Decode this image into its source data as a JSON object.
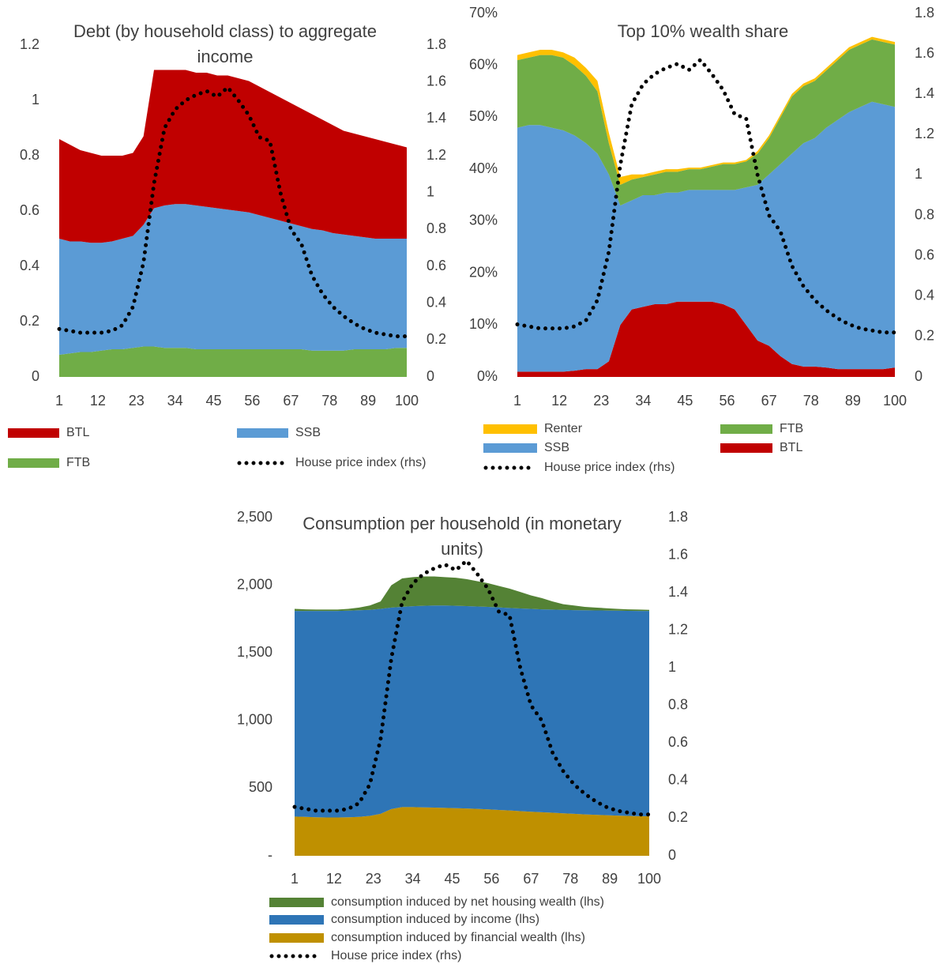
{
  "chart_data": [
    {
      "type": "area",
      "title": "Debt (by household class) to aggregate income",
      "x": [
        1,
        4,
        7,
        10,
        13,
        16,
        19,
        22,
        25,
        28,
        31,
        34,
        37,
        40,
        43,
        46,
        49,
        52,
        55,
        58,
        61,
        64,
        67,
        70,
        73,
        76,
        79,
        82,
        85,
        88,
        91,
        94,
        97,
        100
      ],
      "xlim": [
        1,
        100
      ],
      "xticks": [
        1,
        12,
        23,
        34,
        45,
        56,
        67,
        78,
        89,
        100
      ],
      "ylim": [
        0,
        1.2
      ],
      "yticks": [
        0,
        0.2,
        0.4,
        0.6,
        0.8,
        1,
        1.2
      ],
      "y2lim": [
        0,
        1.8
      ],
      "y2ticks": [
        0,
        0.2,
        0.4,
        0.6,
        0.8,
        1,
        1.2,
        1.4,
        1.6,
        1.8
      ],
      "series": [
        {
          "name": "FTB",
          "color": "#70ad47",
          "values": [
            0.08,
            0.085,
            0.09,
            0.09,
            0.095,
            0.1,
            0.1,
            0.105,
            0.11,
            0.11,
            0.105,
            0.105,
            0.105,
            0.1,
            0.1,
            0.1,
            0.1,
            0.1,
            0.1,
            0.1,
            0.1,
            0.1,
            0.1,
            0.1,
            0.095,
            0.095,
            0.095,
            0.095,
            0.1,
            0.1,
            0.1,
            0.1,
            0.105,
            0.105
          ]
        },
        {
          "name": "SSB",
          "color": "#5b9bd5",
          "values": [
            0.42,
            0.405,
            0.4,
            0.395,
            0.39,
            0.39,
            0.4,
            0.405,
            0.44,
            0.5,
            0.515,
            0.52,
            0.52,
            0.52,
            0.515,
            0.51,
            0.505,
            0.5,
            0.495,
            0.485,
            0.475,
            0.465,
            0.455,
            0.445,
            0.44,
            0.435,
            0.425,
            0.42,
            0.41,
            0.405,
            0.4,
            0.4,
            0.395,
            0.395
          ]
        },
        {
          "name": "BTL",
          "color": "#c00000",
          "values": [
            0.36,
            0.35,
            0.33,
            0.325,
            0.315,
            0.31,
            0.3,
            0.3,
            0.32,
            0.5,
            0.49,
            0.485,
            0.485,
            0.48,
            0.485,
            0.48,
            0.485,
            0.48,
            0.475,
            0.465,
            0.455,
            0.445,
            0.435,
            0.425,
            0.415,
            0.4,
            0.39,
            0.375,
            0.37,
            0.365,
            0.36,
            0.35,
            0.34,
            0.33
          ]
        },
        {
          "name": "House price index (rhs)",
          "type": "line",
          "axis": "y2",
          "color": "#000000",
          "values": [
            0.26,
            0.25,
            0.24,
            0.24,
            0.24,
            0.25,
            0.28,
            0.38,
            0.62,
            1.05,
            1.35,
            1.45,
            1.5,
            1.53,
            1.55,
            1.52,
            1.57,
            1.5,
            1.42,
            1.3,
            1.28,
            1.0,
            0.8,
            0.72,
            0.55,
            0.45,
            0.38,
            0.33,
            0.29,
            0.26,
            0.24,
            0.23,
            0.22,
            0.22
          ]
        }
      ]
    },
    {
      "type": "area",
      "title": "Top 10% wealth share",
      "x": [
        1,
        4,
        7,
        10,
        13,
        16,
        19,
        22,
        25,
        28,
        31,
        34,
        37,
        40,
        43,
        46,
        49,
        52,
        55,
        58,
        61,
        64,
        67,
        70,
        73,
        76,
        79,
        82,
        85,
        88,
        91,
        94,
        97,
        100
      ],
      "xlim": [
        1,
        100
      ],
      "xticks": [
        1,
        12,
        23,
        34,
        45,
        56,
        67,
        78,
        89,
        100
      ],
      "ylim": [
        0,
        70
      ],
      "yticks": [
        {
          "value": 0,
          "label": "0%"
        },
        {
          "value": 10,
          "label": "10%"
        },
        {
          "value": 20,
          "label": "20%"
        },
        {
          "value": 30,
          "label": "30%"
        },
        {
          "value": 40,
          "label": "40%"
        },
        {
          "value": 50,
          "label": "50%"
        },
        {
          "value": 60,
          "label": "60%"
        },
        {
          "value": 70,
          "label": "70%"
        }
      ],
      "y2lim": [
        0,
        1.8
      ],
      "y2ticks": [
        0,
        0.2,
        0.4,
        0.6,
        0.8,
        1,
        1.2,
        1.4,
        1.6,
        1.8
      ],
      "series": [
        {
          "name": "BTL",
          "color": "#c00000",
          "values": [
            1,
            1,
            1,
            1,
            1,
            1.2,
            1.5,
            1.5,
            3,
            10,
            13,
            13.5,
            14,
            14,
            14.5,
            14.5,
            14.5,
            14.5,
            14,
            13,
            10,
            7,
            6,
            4,
            2.5,
            2,
            2,
            1.8,
            1.5,
            1.5,
            1.5,
            1.5,
            1.5,
            1.8
          ]
        },
        {
          "name": "SSB",
          "color": "#5b9bd5",
          "values": [
            47,
            47.5,
            47.5,
            47,
            46.5,
            45.3,
            43.5,
            41.5,
            36,
            23,
            21,
            21.5,
            21,
            21.5,
            21,
            21.5,
            21.5,
            21.5,
            22,
            23,
            26.5,
            30,
            33,
            37,
            40.5,
            43,
            44,
            46.2,
            48,
            49.5,
            50.5,
            51.5,
            51,
            50.2
          ]
        },
        {
          "name": "FTB",
          "color": "#70ad47",
          "values": [
            13,
            13,
            13.5,
            14,
            14,
            13.5,
            13,
            12,
            6,
            4,
            4,
            3.5,
            4,
            4,
            4,
            4,
            4,
            4.5,
            5,
            5,
            5,
            6,
            7,
            9,
            11,
            11,
            11,
            11,
            11.5,
            12,
            12,
            12,
            12,
            12
          ]
        },
        {
          "name": "Renter",
          "color": "#ffc000",
          "values": [
            1,
            1,
            1,
            1,
            1,
            1.5,
            1.5,
            2,
            2,
            1.5,
            1,
            0.5,
            0.5,
            0.5,
            0.5,
            0.3,
            0.3,
            0.3,
            0.3,
            0.3,
            0.3,
            0.5,
            0.5,
            0.5,
            0.5,
            0.5,
            0.5,
            0.5,
            0.5,
            0.5,
            0.5,
            0.5,
            0.5,
            0.5
          ]
        },
        {
          "name": "House price index (rhs)",
          "type": "line",
          "axis": "y2",
          "color": "#000000",
          "values": [
            0.26,
            0.25,
            0.24,
            0.24,
            0.24,
            0.25,
            0.28,
            0.38,
            0.62,
            1.05,
            1.35,
            1.45,
            1.5,
            1.53,
            1.55,
            1.52,
            1.57,
            1.5,
            1.42,
            1.3,
            1.28,
            1.0,
            0.8,
            0.72,
            0.55,
            0.45,
            0.38,
            0.33,
            0.29,
            0.26,
            0.24,
            0.23,
            0.22,
            0.22
          ]
        }
      ]
    },
    {
      "type": "area",
      "title": "Consumption per household (in monetary units)",
      "x": [
        1,
        4,
        7,
        10,
        13,
        16,
        19,
        22,
        25,
        28,
        31,
        34,
        37,
        40,
        43,
        46,
        49,
        52,
        55,
        58,
        61,
        64,
        67,
        70,
        73,
        76,
        79,
        82,
        85,
        88,
        91,
        94,
        97,
        100
      ],
      "xlim": [
        1,
        100
      ],
      "xticks": [
        1,
        12,
        23,
        34,
        45,
        56,
        67,
        78,
        89,
        100
      ],
      "ylim": [
        0,
        2500
      ],
      "yticks": [
        {
          "value": 0,
          "label": "-"
        },
        500,
        {
          "value": 1000,
          "label": "1,000"
        },
        {
          "value": 1500,
          "label": "1,500"
        },
        {
          "value": 2000,
          "label": "2,000"
        },
        {
          "value": 2500,
          "label": "2,500"
        }
      ],
      "y2lim": [
        0,
        1.8
      ],
      "y2ticks": [
        0,
        0.2,
        0.4,
        0.6,
        0.8,
        1,
        1.2,
        1.4,
        1.6,
        1.8
      ],
      "series": [
        {
          "name": "consumption induced by financial wealth (lhs)",
          "color": "#bf9000",
          "values": [
            290,
            288,
            285,
            283,
            283,
            285,
            288,
            295,
            310,
            345,
            360,
            360,
            358,
            356,
            354,
            352,
            350,
            347,
            343,
            339,
            335,
            330,
            326,
            322,
            318,
            314,
            310,
            306,
            303,
            300,
            297,
            295,
            293,
            292
          ]
        },
        {
          "name": "consumption induced by income (lhs)",
          "color": "#2e75b6",
          "values": [
            1520,
            1522,
            1525,
            1527,
            1527,
            1527,
            1527,
            1523,
            1515,
            1490,
            1480,
            1485,
            1490,
            1494,
            1496,
            1496,
            1496,
            1496,
            1497,
            1497,
            1497,
            1498,
            1499,
            1500,
            1502,
            1504,
            1506,
            1509,
            1511,
            1513,
            1515,
            1516,
            1517,
            1518
          ]
        },
        {
          "name": "consumption induced by net housing wealth (lhs)",
          "color": "#548235",
          "values": [
            15,
            12,
            10,
            10,
            10,
            13,
            20,
            32,
            55,
            165,
            210,
            215,
            217,
            215,
            210,
            207,
            199,
            187,
            175,
            159,
            143,
            122,
            100,
            83,
            60,
            42,
            34,
            25,
            21,
            17,
            13,
            11,
            10,
            8
          ]
        },
        {
          "name": "House price index (rhs)",
          "type": "line",
          "axis": "y2",
          "color": "#000000",
          "values": [
            0.26,
            0.25,
            0.24,
            0.24,
            0.24,
            0.25,
            0.28,
            0.38,
            0.62,
            1.05,
            1.35,
            1.45,
            1.5,
            1.53,
            1.55,
            1.52,
            1.57,
            1.5,
            1.42,
            1.3,
            1.28,
            1.0,
            0.8,
            0.72,
            0.55,
            0.45,
            0.38,
            0.33,
            0.29,
            0.26,
            0.24,
            0.23,
            0.22,
            0.22
          ]
        }
      ]
    }
  ]
}
